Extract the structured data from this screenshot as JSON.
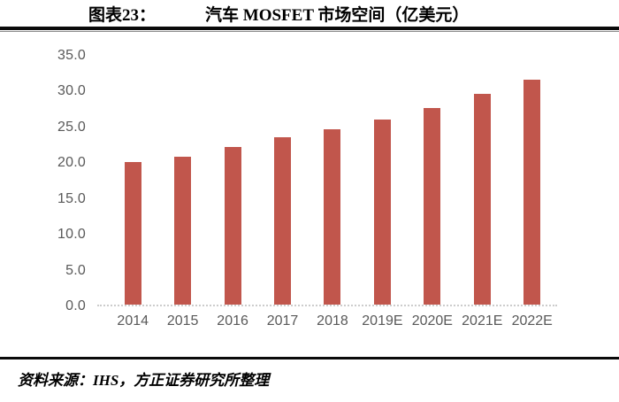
{
  "header": {
    "figure_label": "图表23：",
    "title": "汽车 MOSFET 市场空间（亿美元）"
  },
  "footer": {
    "source": "资料来源：IHS，方正证券研究所整理"
  },
  "colors": {
    "bar": "#c1564c",
    "axis_label": "#595959",
    "baseline": "#cccccc",
    "rule": "#0a0a0a"
  },
  "chart_data": {
    "type": "bar",
    "title": "汽车 MOSFET 市场空间（亿美元）",
    "categories": [
      "2014",
      "2015",
      "2016",
      "2017",
      "2018",
      "2019E",
      "2020E",
      "2021E",
      "2022E"
    ],
    "values": [
      20.0,
      20.8,
      22.2,
      23.6,
      24.7,
      26.0,
      27.7,
      29.6,
      31.6
    ],
    "xlabel": "",
    "ylabel": "",
    "ylim": [
      0,
      35
    ],
    "ytick_step": 5,
    "ytick_labels": [
      "0.0",
      "5.0",
      "10.0",
      "15.0",
      "20.0",
      "25.0",
      "30.0",
      "35.0"
    ],
    "bar_color": "#c1564c",
    "grid": false,
    "legend": "none"
  }
}
